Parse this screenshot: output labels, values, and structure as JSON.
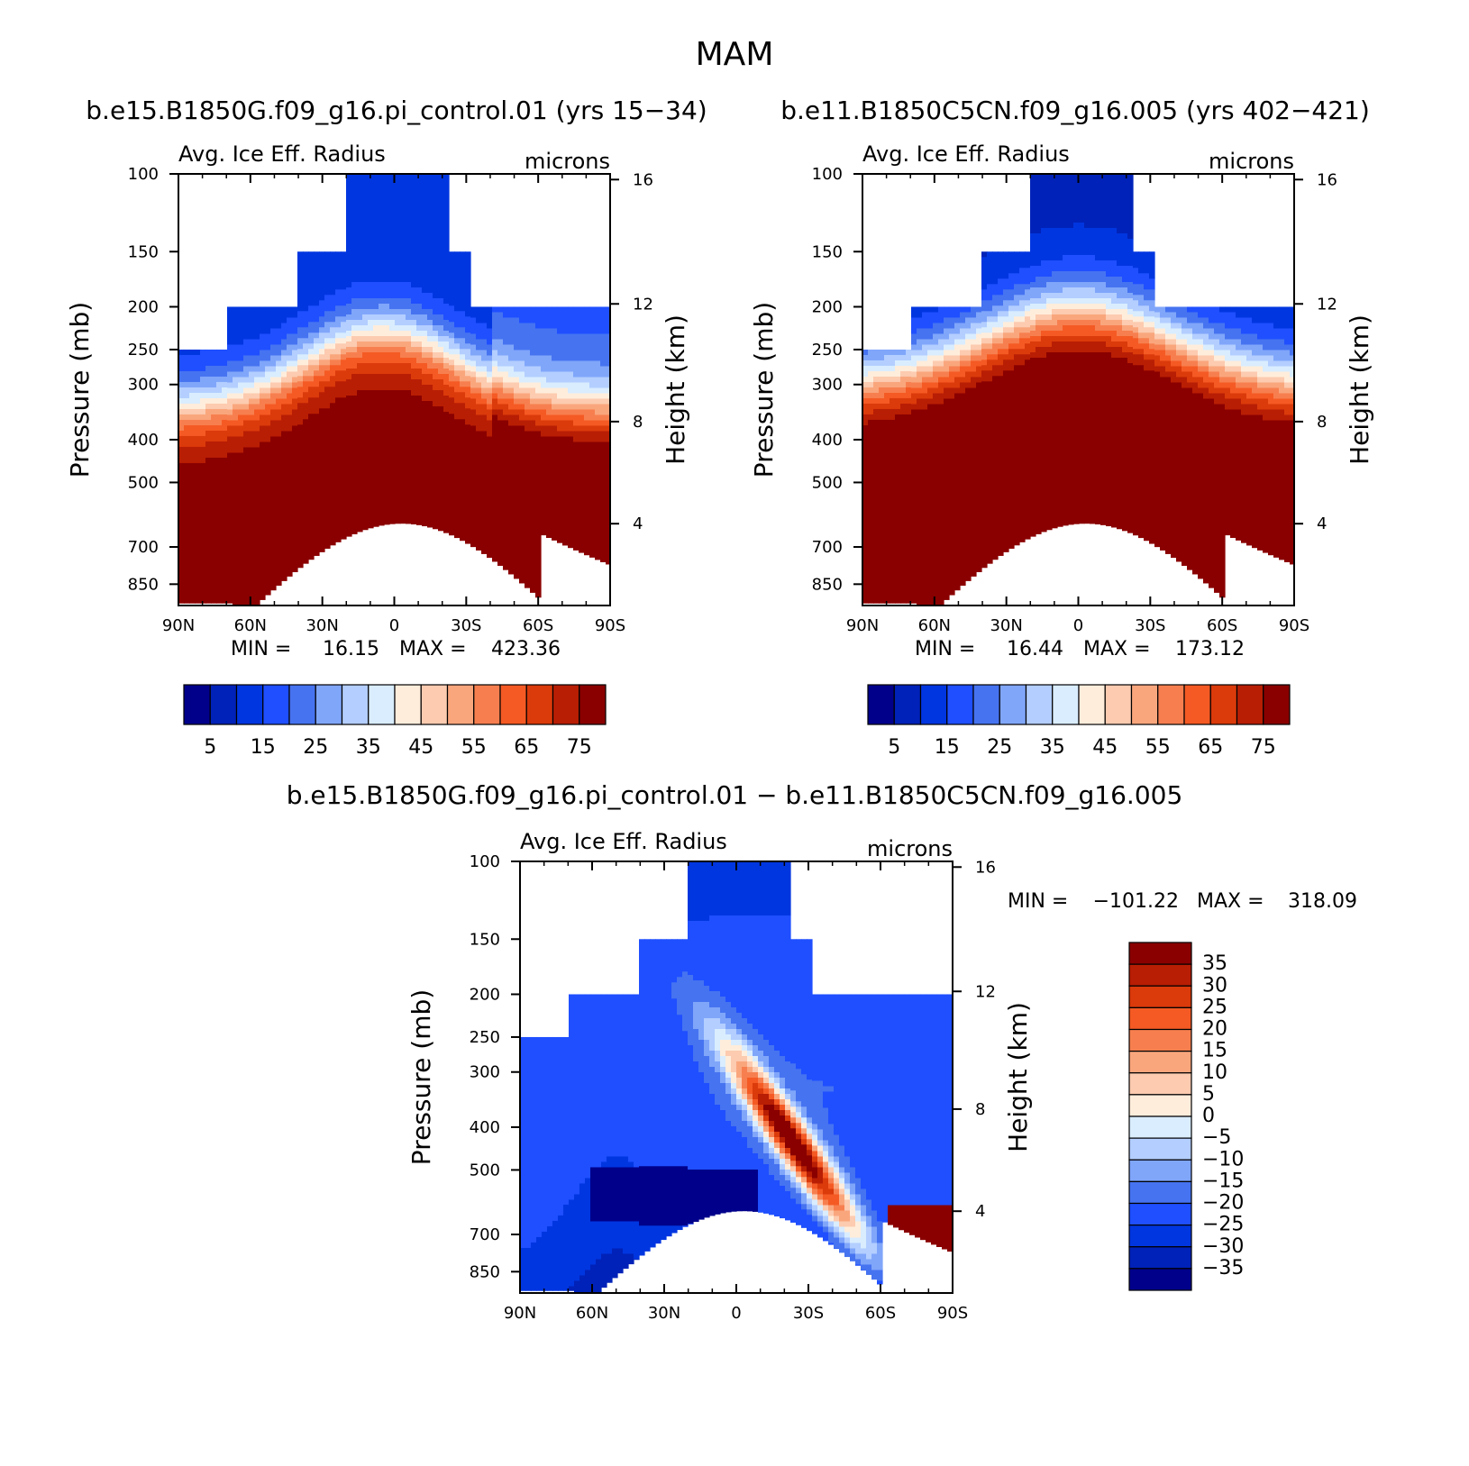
{
  "figure": {
    "title": "MAM",
    "panel1_title": "b.e15.B1850G.f09_g16.pi_control.01 (yrs 15−34)",
    "panel2_title": "b.e11.B1850C5CN.f09_g16.005 (yrs 402−421)",
    "diff_title": "b.e15.B1850G.f09_g16.pi_control.01 − b.e11.B1850C5CN.f09_g16.005"
  },
  "colors": {
    "abs_palette": [
      "#00008b",
      "#0022b8",
      "#0036e0",
      "#1f4fff",
      "#4673f0",
      "#80a6fa",
      "#b3ceff",
      "#d9edff",
      "#ffeddb",
      "#fccbb0",
      "#faa67d",
      "#f77f4f",
      "#f55a24",
      "#db3a0b",
      "#b81e04",
      "#8a0000"
    ],
    "diff_palette": [
      "#00008b",
      "#0022b8",
      "#0036e0",
      "#1f4fff",
      "#4673f0",
      "#80a6fa",
      "#b3ceff",
      "#d9edff",
      "#ffeddb",
      "#fccbb0",
      "#faa67d",
      "#f77f4f",
      "#f55a24",
      "#db3a0b",
      "#b81e04",
      "#8a0000"
    ]
  },
  "chart_data": [
    {
      "type": "heatmap",
      "name": "control",
      "left_label": "Avg. Ice Eff. Radius",
      "right_label": "microns",
      "ylabel": "Pressure (mb)",
      "ylabel_right": "Height (km)",
      "xticks": [
        "90N",
        "60N",
        "30N",
        "0",
        "30S",
        "60S",
        "90S"
      ],
      "yticks": [
        "100",
        "150",
        "200",
        "250",
        "300",
        "400",
        "500",
        "700",
        "850"
      ],
      "yticks_right": [
        "16",
        "12",
        "8",
        "4"
      ],
      "x_range": [
        90,
        -90
      ],
      "p_range": [
        100,
        950
      ],
      "min_label": "MIN =",
      "min_value": "16.15",
      "max_label": "MAX =",
      "max_value": "423.36",
      "colorbar_ticks": [
        "5",
        "15",
        "25",
        "35",
        "45",
        "55",
        "65",
        "75"
      ],
      "model": {
        "top_value": 18,
        "surface_value": 90,
        "center_lat": 5,
        "spread": 1.7,
        "fill_ceiling_p": {
          "inner": 100,
          "mid": 150,
          "outer": 200,
          "edge_n": 250
        }
      }
    },
    {
      "type": "heatmap",
      "name": "c5cn",
      "left_label": "Avg. Ice Eff. Radius",
      "right_label": "microns",
      "ylabel": "Pressure (mb)",
      "ylabel_right": "Height (km)",
      "xticks": [
        "90N",
        "60N",
        "30N",
        "0",
        "30S",
        "60S",
        "90S"
      ],
      "yticks": [
        "100",
        "150",
        "200",
        "250",
        "300",
        "400",
        "500",
        "700",
        "850"
      ],
      "yticks_right": [
        "16",
        "12",
        "8",
        "4"
      ],
      "x_range": [
        90,
        -90
      ],
      "p_range": [
        100,
        950
      ],
      "min_label": "MIN =",
      "min_value": "16.44",
      "max_label": "MAX =",
      "max_value": "173.12",
      "colorbar_ticks": [
        "5",
        "15",
        "25",
        "35",
        "45",
        "55",
        "65",
        "75"
      ],
      "model": {
        "top_value": 25,
        "surface_value": 110,
        "center_lat": 0,
        "spread": 1.2,
        "fill_ceiling_p": {
          "inner": 100,
          "mid": 150,
          "outer": 200,
          "edge_n": 250
        }
      }
    },
    {
      "type": "heatmap",
      "name": "difference",
      "left_label": "Avg. Ice Eff. Radius",
      "right_label": "microns",
      "ylabel": "Pressure (mb)",
      "ylabel_right": "Height (km)",
      "xticks": [
        "90N",
        "60N",
        "30N",
        "0",
        "30S",
        "60S",
        "90S"
      ],
      "yticks": [
        "100",
        "150",
        "200",
        "250",
        "300",
        "400",
        "500",
        "700",
        "850"
      ],
      "yticks_right": [
        "16",
        "12",
        "8",
        "4"
      ],
      "x_range": [
        90,
        -90
      ],
      "p_range": [
        100,
        950
      ],
      "min_label": "MIN =",
      "min_value": "−101.22",
      "max_label": "MAX =",
      "max_value": "318.09",
      "colorbar_ticks": [
        "35",
        "30",
        "25",
        "20",
        "15",
        "10",
        "5",
        "0",
        "−5",
        "−10",
        "−15",
        "−20",
        "−25",
        "−30",
        "−35"
      ]
    }
  ]
}
